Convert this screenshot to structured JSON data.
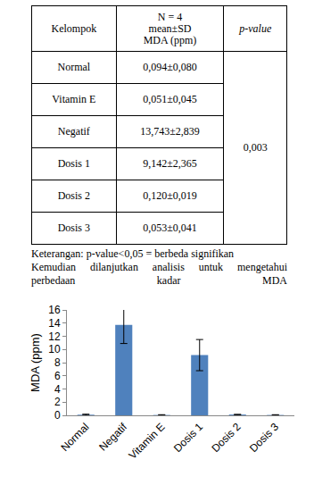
{
  "table": {
    "header": [
      "Kelompok",
      "N = 4\nmean±SD\nMDA (ppm)",
      "p-value"
    ],
    "rows": [
      [
        "Normal",
        "0,094±0,080"
      ],
      [
        "Vitamin E",
        "0,051±0,045"
      ],
      [
        "Negatif",
        "13,743±2,839"
      ],
      [
        "Dosis 1",
        "9,142±2,365"
      ],
      [
        "Dosis 2",
        "0,120±0,019"
      ],
      [
        "Dosis 3",
        "0,053±0,041"
      ]
    ],
    "p_value": "0,003"
  },
  "note": "Keterangan: p-value<0,05 = berbeda signifikan",
  "paragraph": "Kemudian dilanjutkan analisis untuk mengetahui perbedaan kadar MDA",
  "chart_data": {
    "type": "bar",
    "y_label": "MDA (ppm)",
    "categories": [
      "Normal",
      "Negatif",
      "Vitamin E",
      "Dosis 1",
      "Dosis 2",
      "Dosis 3"
    ],
    "values": [
      0.094,
      13.743,
      0.051,
      9.142,
      0.12,
      0.053
    ],
    "errors": [
      0.08,
      2.839,
      0.045,
      2.365,
      0.019,
      0.041
    ],
    "color": "#4f81bd",
    "ylim": [
      0,
      16
    ],
    "yticks": [
      0,
      2,
      4,
      6,
      8,
      10,
      12,
      14,
      16
    ],
    "grid": false
  }
}
